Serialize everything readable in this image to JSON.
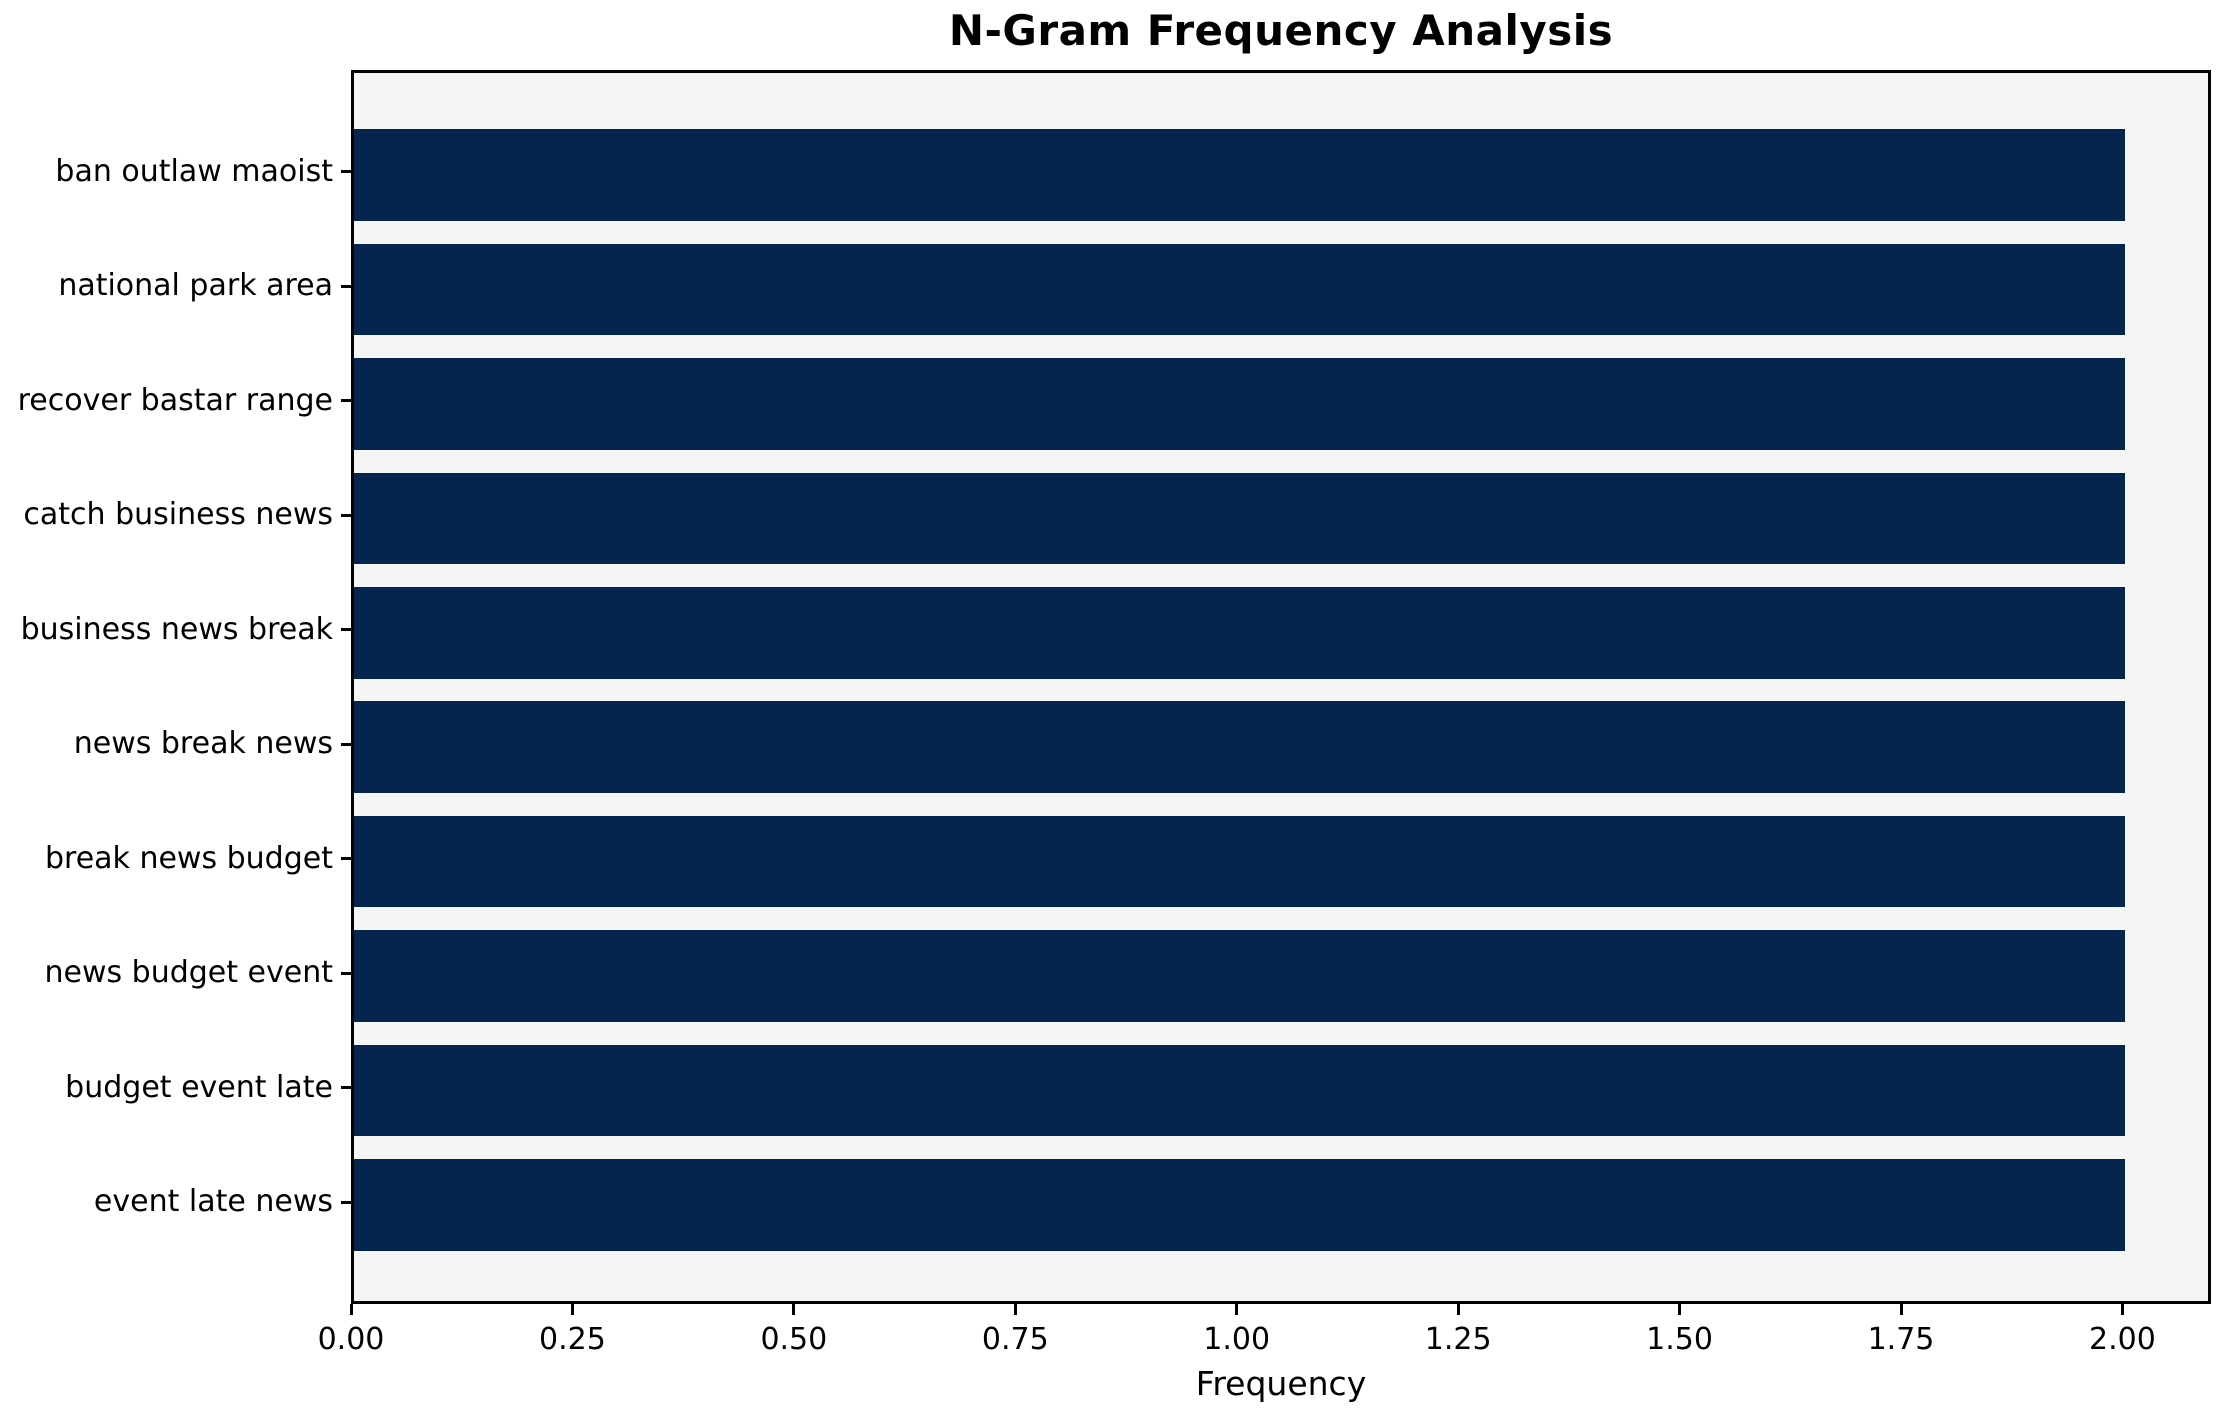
{
  "colors": {
    "bar": "#03254e",
    "plot_background": "#f5f5f5",
    "figure_background": "#ffffff",
    "axis": "#000000"
  },
  "chart_data": {
    "type": "bar",
    "orientation": "horizontal",
    "title": "N-Gram Frequency Analysis",
    "xlabel": "Frequency",
    "ylabel": "",
    "categories": [
      "ban outlaw maoist",
      "national park area",
      "recover bastar range",
      "catch business news",
      "business news break",
      "news break news",
      "break news budget",
      "news budget event",
      "budget event late",
      "event late news"
    ],
    "values": [
      2,
      2,
      2,
      2,
      2,
      2,
      2,
      2,
      2,
      2
    ],
    "xlim": [
      0,
      2.1
    ],
    "xticks": {
      "values": [
        0.0,
        0.25,
        0.5,
        0.75,
        1.0,
        1.25,
        1.5,
        1.75,
        2.0
      ],
      "labels": [
        "0.00",
        "0.25",
        "0.50",
        "0.75",
        "1.00",
        "1.25",
        "1.50",
        "1.75",
        "2.00"
      ]
    },
    "grid": false,
    "legend": null,
    "bar_color": "#03254e"
  }
}
